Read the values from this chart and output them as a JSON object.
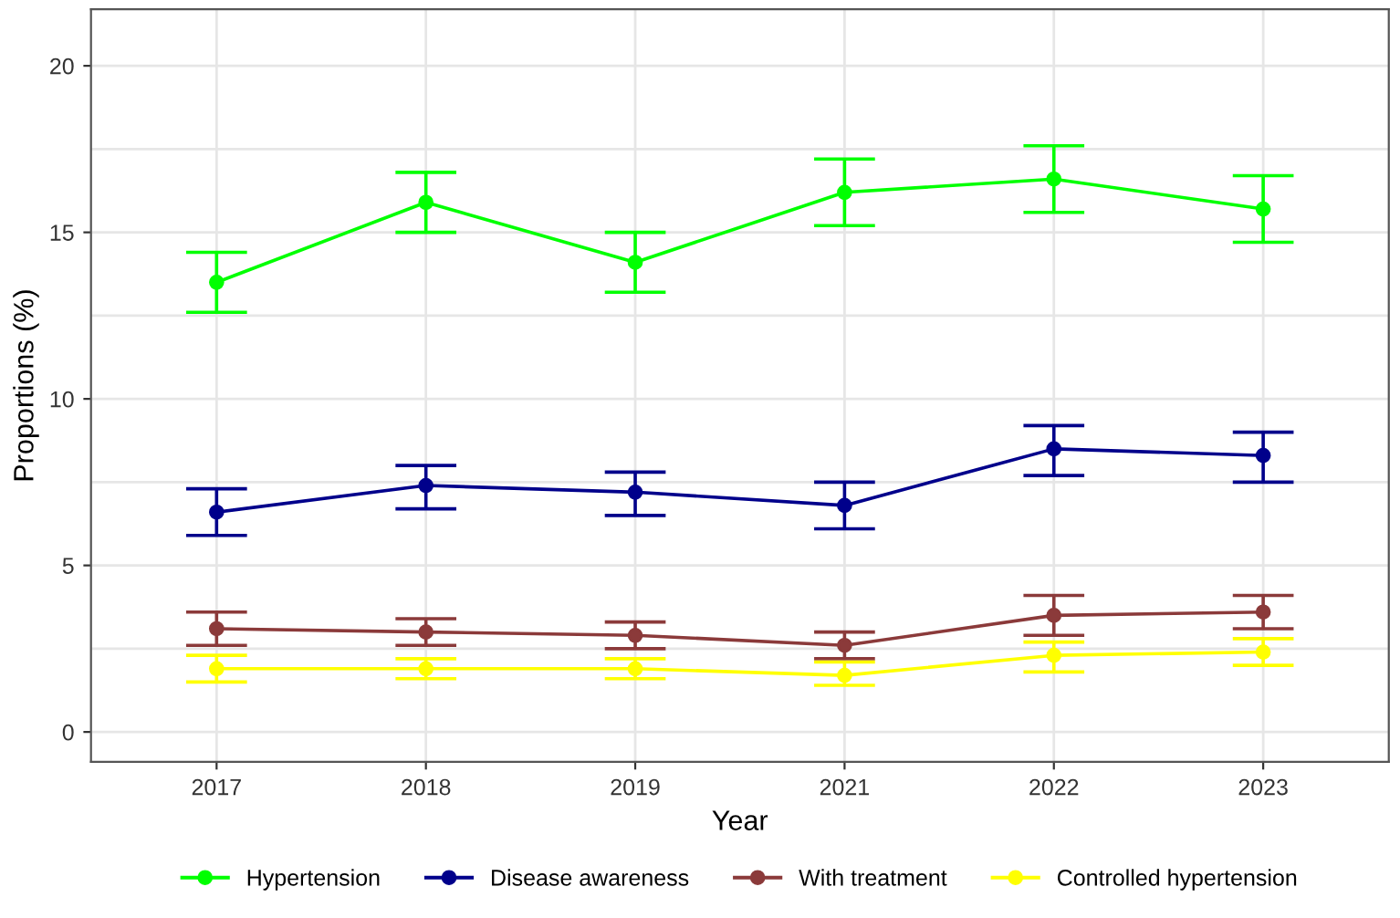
{
  "chart_data": {
    "type": "line",
    "xlabel": "Year",
    "ylabel": "Proportions (%)",
    "categories": [
      "2017",
      "2018",
      "2019",
      "2021",
      "2022",
      "2023"
    ],
    "series": [
      {
        "name": "Hypertension",
        "color": "#00ff00",
        "values": [
          13.5,
          15.9,
          14.1,
          16.2,
          16.6,
          15.7
        ],
        "errors": [
          [
            12.6,
            14.4
          ],
          [
            15.0,
            16.8
          ],
          [
            13.2,
            15.0
          ],
          [
            15.2,
            17.2
          ],
          [
            15.6,
            17.6
          ],
          [
            14.7,
            16.7
          ]
        ]
      },
      {
        "name": "Disease awareness",
        "color": "#00008b",
        "values": [
          6.6,
          7.4,
          7.2,
          6.8,
          8.5,
          8.3
        ],
        "errors": [
          [
            5.9,
            7.3
          ],
          [
            6.7,
            8.0
          ],
          [
            6.5,
            7.8
          ],
          [
            6.1,
            7.5
          ],
          [
            7.7,
            9.2
          ],
          [
            7.5,
            9.0
          ]
        ]
      },
      {
        "name": "With treatment",
        "color": "#8b3a3a",
        "values": [
          3.1,
          3.0,
          2.9,
          2.6,
          3.5,
          3.6
        ],
        "errors": [
          [
            2.6,
            3.6
          ],
          [
            2.6,
            3.4
          ],
          [
            2.5,
            3.3
          ],
          [
            2.2,
            3.0
          ],
          [
            2.9,
            4.1
          ],
          [
            3.1,
            4.1
          ]
        ]
      },
      {
        "name": "Controlled hypertension",
        "color": "#ffff00",
        "values": [
          1.9,
          1.9,
          1.9,
          1.7,
          2.3,
          2.4
        ],
        "errors": [
          [
            1.5,
            2.3
          ],
          [
            1.6,
            2.2
          ],
          [
            1.6,
            2.2
          ],
          [
            1.4,
            2.1
          ],
          [
            1.8,
            2.7
          ],
          [
            2.0,
            2.8
          ]
        ]
      }
    ],
    "ylim": [
      -0.9,
      21.7
    ],
    "yticks": [
      0,
      {
        "value": 2.5,
        "label": null
      },
      5,
      {
        "value": 7.5,
        "label": null
      },
      10,
      {
        "value": 12.5,
        "label": null
      },
      15,
      {
        "value": 17.5,
        "label": null
      },
      20
    ],
    "grid": true,
    "legend": "bottom",
    "marker": "circle",
    "line_style": "solid"
  }
}
